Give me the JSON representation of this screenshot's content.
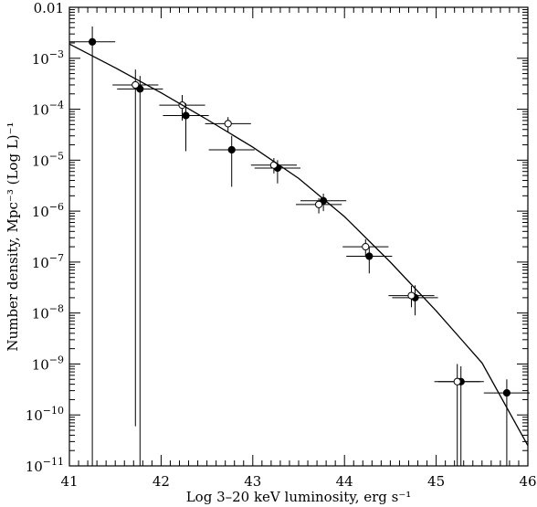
{
  "chart_data": {
    "type": "scatter",
    "title": "",
    "xlabel": "Log 3–20 keV luminosity, erg s⁻¹",
    "ylabel": "Number density, Mpc⁻³ (Log L)⁻¹",
    "xlim": [
      41,
      46
    ],
    "ylim_log10": [
      -11,
      -2
    ],
    "yscale": "log",
    "grid": false,
    "legend": "none",
    "x_ticks": [
      "41",
      "42",
      "43",
      "44",
      "45",
      "46"
    ],
    "y_ticks": [
      {
        "base": "0.01",
        "exp": ""
      },
      {
        "base": "10",
        "exp": "−3"
      },
      {
        "base": "10",
        "exp": "−4"
      },
      {
        "base": "10",
        "exp": "−5"
      },
      {
        "base": "10",
        "exp": "−6"
      },
      {
        "base": "10",
        "exp": "−7"
      },
      {
        "base": "10",
        "exp": "−8"
      },
      {
        "base": "10",
        "exp": "−9"
      },
      {
        "base": "10",
        "exp": "−10"
      },
      {
        "base": "10",
        "exp": "−11"
      }
    ],
    "series": [
      {
        "marker": "filled-circle",
        "points": [
          {
            "x": 41.25,
            "y": 0.0021,
            "xerr": 0.25,
            "ylo": 1e-11,
            "yhi": 0.0042
          },
          {
            "x": 41.77,
            "y": 0.00025,
            "xerr": 0.25,
            "ylo": 1e-11,
            "yhi": 0.00045
          },
          {
            "x": 42.27,
            "y": 7.5e-05,
            "xerr": 0.25,
            "ylo": 1.5e-05,
            "yhi": 0.00013
          },
          {
            "x": 42.77,
            "y": 1.6e-05,
            "xerr": 0.25,
            "ylo": 3e-06,
            "yhi": 3e-05
          },
          {
            "x": 43.27,
            "y": 7e-06,
            "xerr": 0.25,
            "ylo": 3.5e-06,
            "yhi": 1e-05
          },
          {
            "x": 43.77,
            "y": 1.6e-06,
            "xerr": 0.25,
            "ylo": 1e-06,
            "yhi": 2.2e-06
          },
          {
            "x": 44.27,
            "y": 1.3e-07,
            "xerr": 0.25,
            "ylo": 6e-08,
            "yhi": 2e-07
          },
          {
            "x": 44.77,
            "y": 2e-08,
            "xerr": 0.25,
            "ylo": 9e-09,
            "yhi": 3.5e-08
          },
          {
            "x": 45.27,
            "y": 4.5e-10,
            "xerr": 0.25,
            "ylo": 1e-11,
            "yhi": 9e-10
          },
          {
            "x": 45.77,
            "y": 2.7e-10,
            "xerr": 0.25,
            "ylo": 1e-11,
            "yhi": 5e-10
          }
        ]
      },
      {
        "marker": "open-circle",
        "points": [
          {
            "x": 41.72,
            "y": 0.0003,
            "xerr": 0.25,
            "ylo": 6e-11,
            "yhi": 0.0006
          },
          {
            "x": 42.23,
            "y": 0.00012,
            "xerr": 0.25,
            "ylo": 6e-05,
            "yhi": 0.00019
          },
          {
            "x": 42.73,
            "y": 5.2e-05,
            "xerr": 0.25,
            "ylo": 3.5e-05,
            "yhi": 7e-05
          },
          {
            "x": 43.23,
            "y": 8e-06,
            "xerr": 0.25,
            "ylo": 5.5e-06,
            "yhi": 1.1e-05
          },
          {
            "x": 43.72,
            "y": 1.35e-06,
            "xerr": 0.25,
            "ylo": 9e-07,
            "yhi": 1.8e-06
          },
          {
            "x": 44.23,
            "y": 2e-07,
            "xerr": 0.25,
            "ylo": 1.3e-07,
            "yhi": 2.8e-07
          },
          {
            "x": 44.73,
            "y": 2.2e-08,
            "xerr": 0.25,
            "ylo": 1.3e-08,
            "yhi": 3.4e-08
          },
          {
            "x": 45.23,
            "y": 4.5e-10,
            "xerr": 0.25,
            "ylo": 1e-11,
            "yhi": 1e-09
          }
        ]
      },
      {
        "marker": "line",
        "points": [
          {
            "x": 41.0,
            "y": 0.0019
          },
          {
            "x": 41.5,
            "y": 0.00065
          },
          {
            "x": 42.0,
            "y": 0.00021
          },
          {
            "x": 42.5,
            "y": 6.3e-05
          },
          {
            "x": 43.0,
            "y": 1.8e-05
          },
          {
            "x": 43.5,
            "y": 4.4e-06
          },
          {
            "x": 44.0,
            "y": 7.8e-07
          },
          {
            "x": 44.5,
            "y": 1e-07
          },
          {
            "x": 45.0,
            "y": 1.1e-08
          },
          {
            "x": 45.5,
            "y": 1.05e-09
          },
          {
            "x": 46.0,
            "y": 2.5e-11
          }
        ]
      }
    ]
  }
}
